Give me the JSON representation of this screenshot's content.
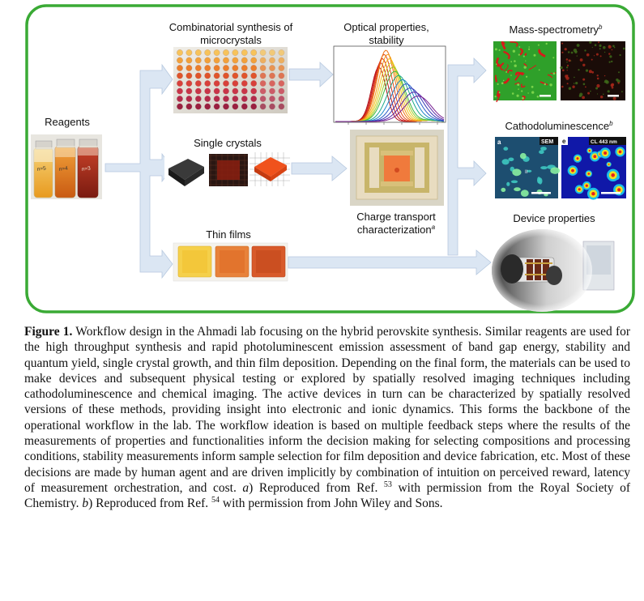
{
  "figure": {
    "labels": {
      "reagents": "Reagents",
      "combinatorial": "Combinatorial synthesis of microcrystals",
      "optical": "Optical properties, stability",
      "single_crystals": "Single crystals",
      "charge_transport": "Charge transport characterization",
      "charge_transport_ref": "a",
      "thin_films": "Thin films",
      "mass_spec": "Mass-spectrometry",
      "mass_spec_ref": "b",
      "cathodo": "Cathodoluminescence",
      "cathodo_ref": "b",
      "device": "Device properties"
    },
    "panel_tags": {
      "cl_a": "a",
      "cl_sem": "SEM",
      "cl_e": "e",
      "cl_443": "CL 443 nm",
      "cl_roman": "II",
      "vial_1": "n=5",
      "vial_2": "n=4",
      "vial_3": "n=3"
    },
    "colors": {
      "frame": "#3aaa35",
      "arrow": "#dbe6f3",
      "arrow_edge": "#b6c8df"
    }
  },
  "caption": {
    "label": "Figure 1.",
    "body_1": " Workflow design in the Ahmadi lab focusing on the hybrid perovskite synthesis. Similar reagents are used for the high throughput synthesis and rapid photoluminescent emission assessment of band gap energy, stability and quantum yield, single crystal growth, and thin film deposition. Depending on the final form, the materials can be used to make devices and subsequent physical testing or explored by spatially resolved imaging techniques including cathodoluminescence and chemical imaging. The active devices in turn can be characterized by spatially resolved versions of these methods, providing insight into electronic and ionic dynamics. This forms the backbone of the operational workflow in the lab. The workflow ideation is based on multiple feedback steps where the results of the measurements of properties and functionalities inform the decision making for selecting compositions and processing conditions, stability measurements inform sample selection for film deposition and device fabrication, etc. Most of these decisions are made by human agent and are driven implicitly by combination of intuition on perceived reward, latency of measurement orchestration, and cost. ",
    "ref_a_letter": "a",
    "ref_a_text": ") Reproduced from Ref. ",
    "ref_a_num": "53",
    "ref_a_tail": " with permission from the Royal Society of Chemistry. ",
    "ref_b_letter": "b",
    "ref_b_text": ") Reproduced from Ref. ",
    "ref_b_num": "54",
    "ref_b_tail": " with permission from John Wiley and Sons."
  }
}
